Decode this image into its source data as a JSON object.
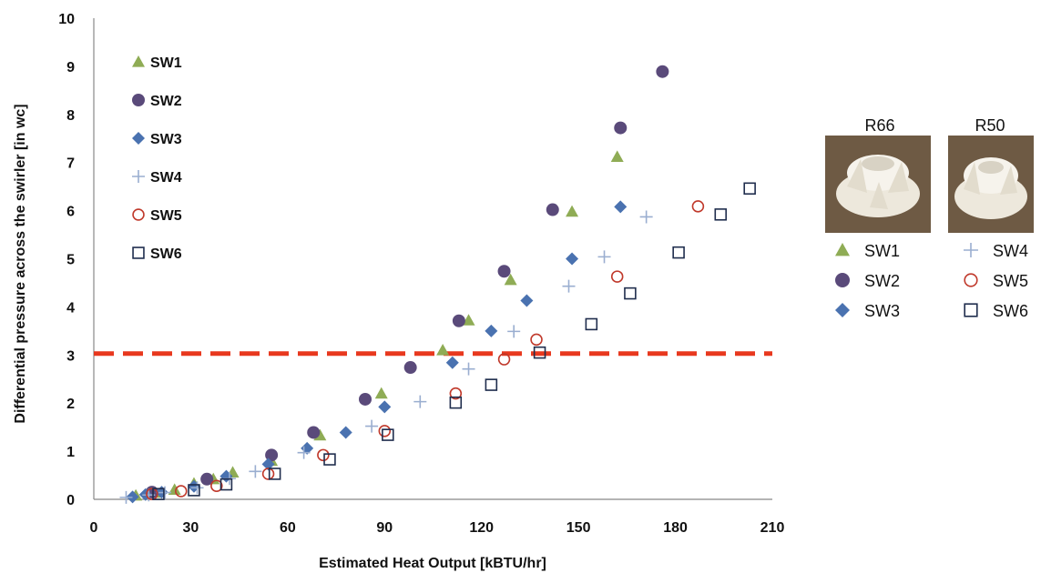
{
  "chart_data": {
    "type": "scatter",
    "xlabel": "Estimated Heat Output [kBTU/hr]",
    "ylabel": "Differential pressure across the swirler [in wc]",
    "xlim": [
      0,
      210
    ],
    "ylim": [
      0,
      10
    ],
    "xticks": [
      "0",
      "30",
      "60",
      "90",
      "120",
      "150",
      "180",
      "210"
    ],
    "yticks": [
      "0",
      "1",
      "2",
      "3",
      "4",
      "5",
      "6",
      "7",
      "8",
      "9",
      "10"
    ],
    "grid": false,
    "legend_placement": "top-left",
    "reference_line": {
      "y": 3.03,
      "style": "dashed",
      "color": "#e8381e"
    },
    "series": [
      {
        "name": "SW1",
        "marker": "triangle",
        "color": "#8fac55",
        "points": [
          [
            13,
            0.08
          ],
          [
            19,
            0.14
          ],
          [
            25,
            0.2
          ],
          [
            31,
            0.33
          ],
          [
            37,
            0.42
          ],
          [
            43,
            0.56
          ],
          [
            55,
            0.8
          ],
          [
            70,
            1.33
          ],
          [
            89,
            2.2
          ],
          [
            108,
            3.1
          ],
          [
            116,
            3.72
          ],
          [
            129,
            4.56
          ],
          [
            148,
            5.98
          ],
          [
            162,
            7.12
          ]
        ]
      },
      {
        "name": "SW2",
        "marker": "circle",
        "color": "#5a4a7a",
        "points": [
          [
            18,
            0.15
          ],
          [
            35,
            0.42
          ],
          [
            55,
            0.92
          ],
          [
            68,
            1.39
          ],
          [
            84,
            2.08
          ],
          [
            98,
            2.74
          ],
          [
            113,
            3.71
          ],
          [
            127,
            4.74
          ],
          [
            142,
            6.02
          ],
          [
            163,
            7.72
          ],
          [
            176,
            8.89
          ]
        ]
      },
      {
        "name": "SW3",
        "marker": "diamond",
        "color": "#4a72b0",
        "points": [
          [
            12,
            0.05
          ],
          [
            16,
            0.1
          ],
          [
            21,
            0.15
          ],
          [
            31,
            0.27
          ],
          [
            41,
            0.48
          ],
          [
            54,
            0.73
          ],
          [
            66,
            1.06
          ],
          [
            78,
            1.39
          ],
          [
            90,
            1.92
          ],
          [
            111,
            2.84
          ],
          [
            123,
            3.5
          ],
          [
            134,
            4.13
          ],
          [
            148,
            5.0
          ],
          [
            163,
            6.08
          ]
        ]
      },
      {
        "name": "SW4",
        "marker": "plus",
        "color": "#9aaed0",
        "points": [
          [
            10,
            0.04
          ],
          [
            17,
            0.09
          ],
          [
            22,
            0.14
          ],
          [
            32,
            0.24
          ],
          [
            42,
            0.43
          ],
          [
            50,
            0.58
          ],
          [
            65,
            0.97
          ],
          [
            86,
            1.52
          ],
          [
            101,
            2.03
          ],
          [
            116,
            2.71
          ],
          [
            130,
            3.49
          ],
          [
            147,
            4.43
          ],
          [
            158,
            5.04
          ],
          [
            171,
            5.87
          ]
        ]
      },
      {
        "name": "SW5",
        "marker": "open-circle",
        "color": "#c0392b",
        "points": [
          [
            18,
            0.11
          ],
          [
            27,
            0.17
          ],
          [
            38,
            0.28
          ],
          [
            54,
            0.53
          ],
          [
            71,
            0.92
          ],
          [
            90,
            1.42
          ],
          [
            112,
            2.2
          ],
          [
            127,
            2.91
          ],
          [
            137,
            3.32
          ],
          [
            162,
            4.63
          ],
          [
            187,
            6.09
          ]
        ]
      },
      {
        "name": "SW6",
        "marker": "open-square",
        "color": "#1f2d4d",
        "points": [
          [
            20,
            0.11
          ],
          [
            31,
            0.19
          ],
          [
            41,
            0.31
          ],
          [
            56,
            0.53
          ],
          [
            73,
            0.83
          ],
          [
            91,
            1.34
          ],
          [
            112,
            2.01
          ],
          [
            123,
            2.38
          ],
          [
            138,
            3.05
          ],
          [
            154,
            3.64
          ],
          [
            166,
            4.28
          ],
          [
            181,
            5.13
          ],
          [
            194,
            5.92
          ],
          [
            203,
            6.46
          ]
        ]
      }
    ]
  },
  "photos": [
    {
      "label": "R66",
      "alt_icon": "swirler-photo-icon"
    },
    {
      "label": "R50",
      "alt_icon": "swirler-photo-icon"
    }
  ],
  "side_legend": [
    "SW1",
    "SW2",
    "SW3",
    "SW4",
    "SW5",
    "SW6"
  ]
}
